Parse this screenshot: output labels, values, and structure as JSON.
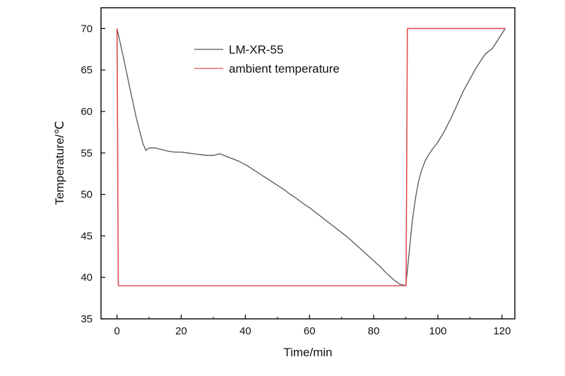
{
  "chart_data": {
    "type": "line",
    "xlabel": "Time/min",
    "ylabel": "Temperature/℃",
    "xlim": [
      -5,
      124
    ],
    "ylim": [
      35,
      72.5
    ],
    "xticks": [
      0,
      20,
      40,
      60,
      80,
      100,
      120
    ],
    "yticks": [
      35,
      40,
      45,
      50,
      55,
      60,
      65,
      70
    ],
    "grid": false,
    "legend_position": "top-center",
    "series": [
      {
        "name": "LM-XR-55",
        "color": "#555555",
        "x": [
          0,
          2,
          4,
          6,
          8,
          9,
          10,
          12,
          14,
          16,
          18,
          20,
          22,
          24,
          26,
          28,
          30,
          31,
          32,
          34,
          36,
          38,
          40,
          42,
          44,
          46,
          48,
          50,
          52,
          54,
          56,
          58,
          60,
          62,
          64,
          66,
          68,
          70,
          72,
          74,
          76,
          78,
          80,
          82,
          84,
          86,
          88,
          90,
          91,
          92,
          93,
          94,
          95,
          96,
          97,
          98,
          100,
          102,
          104,
          106,
          108,
          110,
          112,
          114,
          115,
          116,
          117,
          118,
          120,
          121
        ],
        "y": [
          70,
          66.5,
          62.8,
          59.2,
          56.2,
          55.3,
          55.6,
          55.6,
          55.4,
          55.2,
          55.1,
          55.1,
          55.0,
          54.9,
          54.8,
          54.7,
          54.7,
          54.8,
          54.9,
          54.6,
          54.3,
          54.0,
          53.6,
          53.1,
          52.6,
          52.1,
          51.6,
          51.1,
          50.6,
          50.0,
          49.5,
          48.9,
          48.4,
          47.8,
          47.2,
          46.6,
          46.0,
          45.4,
          44.8,
          44.1,
          43.4,
          42.7,
          42.0,
          41.3,
          40.5,
          39.8,
          39.2,
          39.0,
          42.8,
          46.7,
          49.5,
          51.6,
          53.0,
          54.0,
          54.7,
          55.3,
          56.3,
          57.6,
          59.1,
          60.8,
          62.5,
          63.9,
          65.3,
          66.5,
          67.0,
          67.3,
          67.6,
          68.2,
          69.4,
          70
        ]
      },
      {
        "name": "ambient temperature",
        "color": "#e05050",
        "x": [
          0,
          0.4,
          90.1,
          90.5,
          117,
          121
        ],
        "y": [
          70,
          39,
          39,
          70,
          70,
          70
        ]
      }
    ]
  },
  "legend": {
    "items": [
      {
        "label": "LM-XR-55",
        "color": "#555555"
      },
      {
        "label": "ambient temperature",
        "color": "#e05050"
      }
    ]
  }
}
